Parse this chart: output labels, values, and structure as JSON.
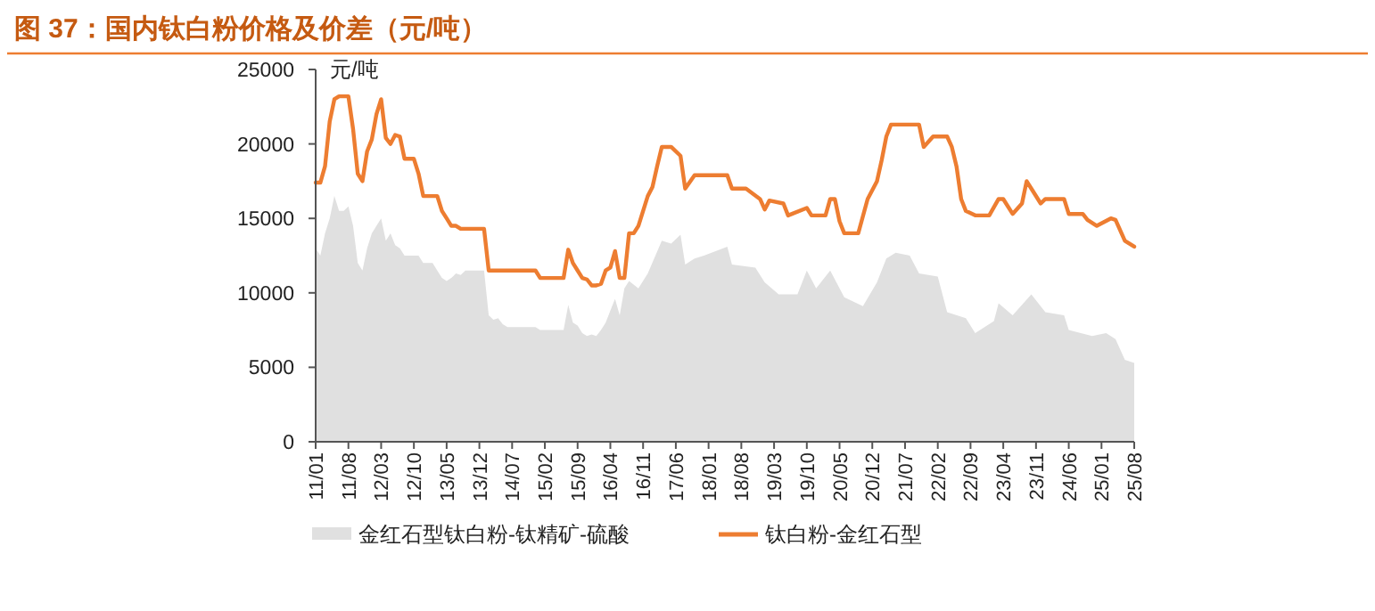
{
  "chart_data": {
    "type": "line",
    "title": "图 37：国内钛白粉价格及价差（元/吨）",
    "ylabel": "元/吨",
    "xlim": [
      "2011-01",
      "2025-08"
    ],
    "xticks": [
      {
        "value": "2011-01",
        "label": "11/01"
      },
      {
        "value": "2011-08",
        "label": "11/08"
      },
      {
        "value": "2012-03",
        "label": "12/03"
      },
      {
        "value": "2012-10",
        "label": "12/10"
      },
      {
        "value": "2013-05",
        "label": "13/05"
      },
      {
        "value": "2013-12",
        "label": "13/12"
      },
      {
        "value": "2014-07",
        "label": "14/07"
      },
      {
        "value": "2015-02",
        "label": "15/02"
      },
      {
        "value": "2015-09",
        "label": "15/09"
      },
      {
        "value": "2016-04",
        "label": "16/04"
      },
      {
        "value": "2016-11",
        "label": "16/11"
      },
      {
        "value": "2017-06",
        "label": "17/06"
      },
      {
        "value": "2018-01",
        "label": "18/01"
      },
      {
        "value": "2018-08",
        "label": "18/08"
      },
      {
        "value": "2019-03",
        "label": "19/03"
      },
      {
        "value": "2019-10",
        "label": "19/10"
      },
      {
        "value": "2020-05",
        "label": "20/05"
      },
      {
        "value": "2020-12",
        "label": "20/12"
      },
      {
        "value": "2021-07",
        "label": "21/07"
      },
      {
        "value": "2022-02",
        "label": "22/02"
      },
      {
        "value": "2022-09",
        "label": "22/09"
      },
      {
        "value": "2023-04",
        "label": "23/04"
      },
      {
        "value": "2023-11",
        "label": "23/11"
      },
      {
        "value": "2024-06",
        "label": "24/06"
      },
      {
        "value": "2025-01",
        "label": "25/01"
      },
      {
        "value": "2025-08",
        "label": "25/08"
      }
    ],
    "ylim": [
      0,
      25000
    ],
    "yticks": [
      0,
      5000,
      10000,
      15000,
      20000,
      25000
    ],
    "legend": "bottom",
    "series": [
      {
        "type": "area",
        "name": "金红石型钛白粉-钛精矿-硫酸",
        "color": "#e0e0e0",
        "x": [
          "2011-01",
          "2011-02",
          "2011-03",
          "2011-04",
          "2011-05",
          "2011-06",
          "2011-07",
          "2011-08",
          "2011-09",
          "2011-10",
          "2011-11",
          "2011-12",
          "2012-01",
          "2012-02",
          "2012-03",
          "2012-04",
          "2012-05",
          "2012-06",
          "2012-07",
          "2012-08",
          "2012-09",
          "2012-10",
          "2012-11",
          "2012-12",
          "2013-01",
          "2013-02",
          "2013-03",
          "2013-04",
          "2013-05",
          "2013-06",
          "2013-07",
          "2013-08",
          "2013-09",
          "2014-01",
          "2014-02",
          "2014-03",
          "2014-04",
          "2014-05",
          "2014-06",
          "2014-12",
          "2015-01",
          "2015-06",
          "2015-07",
          "2015-08",
          "2015-09",
          "2015-10",
          "2015-11",
          "2015-12",
          "2016-01",
          "2016-02",
          "2016-03",
          "2016-04",
          "2016-05",
          "2016-06",
          "2016-07",
          "2016-08",
          "2016-10",
          "2016-12",
          "2017-03",
          "2017-05",
          "2017-07",
          "2017-08",
          "2017-10",
          "2017-12",
          "2018-05",
          "2018-06",
          "2018-11",
          "2019-01",
          "2019-04",
          "2019-08",
          "2019-10",
          "2019-12",
          "2020-03",
          "2020-06",
          "2020-10",
          "2021-01",
          "2021-03",
          "2021-05",
          "2021-08",
          "2021-10",
          "2022-02",
          "2022-04",
          "2022-08",
          "2022-10",
          "2023-02",
          "2023-03",
          "2023-06",
          "2023-10",
          "2024-01",
          "2024-05",
          "2024-06",
          "2024-11",
          "2025-02",
          "2025-04",
          "2025-06",
          "2025-08"
        ],
        "values": [
          13000,
          12500,
          14000,
          15000,
          16500,
          15500,
          15500,
          15800,
          14500,
          12000,
          11500,
          13000,
          14000,
          14500,
          15000,
          13500,
          14000,
          13200,
          13000,
          12500,
          12500,
          12500,
          12500,
          12000,
          12000,
          12000,
          11500,
          11000,
          10800,
          11000,
          11300,
          11200,
          11500,
          11500,
          8500,
          8200,
          8300,
          7900,
          7700,
          7700,
          7500,
          7500,
          9200,
          8000,
          7800,
          7300,
          7100,
          7200,
          7100,
          7500,
          8000,
          8800,
          9600,
          8500,
          10300,
          10800,
          10300,
          11300,
          13500,
          13300,
          13900,
          11900,
          12300,
          12500,
          13100,
          11900,
          11700,
          10700,
          9900,
          9900,
          11500,
          10300,
          11500,
          9700,
          9100,
          10700,
          12300,
          12700,
          12500,
          11300,
          11100,
          8700,
          8300,
          7300,
          8100,
          9300,
          8500,
          9900,
          8700,
          8500,
          7500,
          7100,
          7300,
          6900,
          5500,
          5300
        ]
      },
      {
        "name": "钛白粉-金红石型",
        "color": "#ed7d31",
        "x": [
          "2011-01",
          "2011-02",
          "2011-03",
          "2011-04",
          "2011-05",
          "2011-06",
          "2011-08",
          "2011-09",
          "2011-10",
          "2011-11",
          "2011-12",
          "2012-01",
          "2012-02",
          "2012-03",
          "2012-04",
          "2012-05",
          "2012-06",
          "2012-07",
          "2012-08",
          "2012-10",
          "2012-11",
          "2012-12",
          "2013-03",
          "2013-04",
          "2013-05",
          "2013-06",
          "2013-07",
          "2013-08",
          "2014-01",
          "2014-02",
          "2014-12",
          "2015-01",
          "2015-06",
          "2015-07",
          "2015-08",
          "2015-09",
          "2015-10",
          "2015-11",
          "2015-12",
          "2016-01",
          "2016-02",
          "2016-03",
          "2016-04",
          "2016-05",
          "2016-06",
          "2016-07",
          "2016-08",
          "2016-09",
          "2016-10",
          "2016-12",
          "2017-01",
          "2017-02",
          "2017-03",
          "2017-05",
          "2017-07",
          "2017-08",
          "2017-10",
          "2018-05",
          "2018-06",
          "2018-09",
          "2018-12",
          "2019-01",
          "2019-02",
          "2019-05",
          "2019-06",
          "2019-10",
          "2019-11",
          "2020-02",
          "2020-03",
          "2020-04",
          "2020-05",
          "2020-06",
          "2020-09",
          "2020-11",
          "2021-01",
          "2021-02",
          "2021-03",
          "2021-04",
          "2021-10",
          "2021-11",
          "2022-01",
          "2022-04",
          "2022-05",
          "2022-06",
          "2022-07",
          "2022-08",
          "2022-10",
          "2023-01",
          "2023-03",
          "2023-04",
          "2023-06",
          "2023-08",
          "2023-09",
          "2023-10",
          "2023-12",
          "2024-01",
          "2024-05",
          "2024-06",
          "2024-09",
          "2024-10",
          "2024-12",
          "2025-03",
          "2025-04",
          "2025-06",
          "2025-08"
        ],
        "values": [
          17400,
          17400,
          18500,
          21500,
          23000,
          23200,
          23200,
          21000,
          18000,
          17500,
          19500,
          20300,
          22000,
          23000,
          20400,
          20000,
          20600,
          20500,
          19000,
          19000,
          18000,
          16500,
          16500,
          15500,
          15000,
          14500,
          14500,
          14300,
          14300,
          11500,
          11500,
          11000,
          11000,
          12900,
          12000,
          11500,
          11000,
          10900,
          10500,
          10500,
          10600,
          11500,
          11700,
          12800,
          11000,
          11000,
          14000,
          14000,
          14500,
          16500,
          17100,
          18500,
          19800,
          19800,
          19200,
          17000,
          17900,
          17900,
          17000,
          17000,
          16300,
          15600,
          16200,
          16000,
          15200,
          15700,
          15200,
          15200,
          16300,
          16300,
          14800,
          14000,
          14000,
          16300,
          17500,
          18900,
          20500,
          21300,
          21300,
          19800,
          20500,
          20500,
          19800,
          18500,
          16300,
          15500,
          15200,
          15200,
          16300,
          16300,
          15300,
          16000,
          17500,
          17000,
          16000,
          16300,
          16300,
          15300,
          15300,
          14900,
          14500,
          15000,
          14900,
          13500,
          13100
        ]
      }
    ]
  }
}
